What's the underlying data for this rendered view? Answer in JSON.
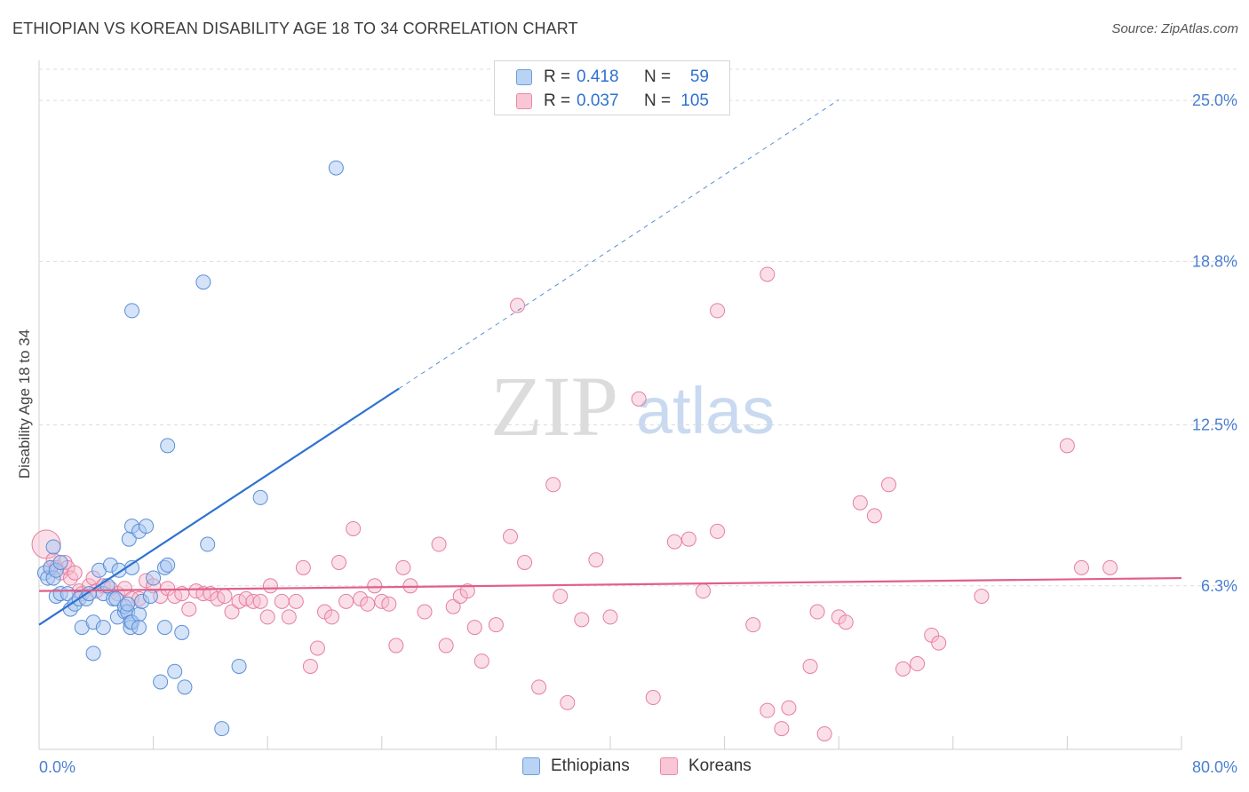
{
  "title": "ETHIOPIAN VS KOREAN DISABILITY AGE 18 TO 34 CORRELATION CHART",
  "source": "Source: ZipAtlas.com",
  "watermark": {
    "zip": "ZIP",
    "atlas": "atlas"
  },
  "legend_top": [
    {
      "r_label": "R =",
      "r_value": "0.418",
      "n_label": "N =",
      "n_value": "59"
    },
    {
      "r_label": "R =",
      "r_value": "0.037",
      "n_label": "N =",
      "n_value": "105"
    }
  ],
  "legend_bottom": [
    {
      "label": "Ethiopians"
    },
    {
      "label": "Koreans"
    }
  ],
  "colors": {
    "eth_fill": "#a9c8f0",
    "eth_stroke": "#5b8ed8",
    "eth_line": "#2f72d0",
    "kor_fill": "#f7b8cc",
    "kor_stroke": "#e47fa0",
    "kor_line": "#e0608a",
    "tick_label": "#4a7fd0",
    "grid": "#dddddd"
  },
  "chart_data": {
    "type": "scatter",
    "title": "ETHIOPIAN VS KOREAN DISABILITY AGE 18 TO 34 CORRELATION CHART",
    "xlabel": "",
    "ylabel": "Disability Age 18 to 34",
    "xlim": [
      0,
      80
    ],
    "ylim": [
      0,
      26.2
    ],
    "x_tick_labels": [
      "0.0%",
      "80.0%"
    ],
    "y_ticks": [
      6.3,
      12.5,
      18.8,
      25.0
    ],
    "y_tick_labels": [
      "6.3%",
      "12.5%",
      "18.8%",
      "25.0%"
    ],
    "grid": true,
    "series": [
      {
        "name": "Ethiopians",
        "r": 0.418,
        "n": 59,
        "trend": {
          "x0": 0,
          "y0": 4.8,
          "x1": 25.2,
          "y1": 13.9,
          "dashed_to_x": 56.0
        },
        "points": [
          [
            0.4,
            6.8
          ],
          [
            0.6,
            6.6
          ],
          [
            0.8,
            7.0
          ],
          [
            1.0,
            6.6
          ],
          [
            1.2,
            6.9
          ],
          [
            1.5,
            7.2
          ],
          [
            1.0,
            7.8
          ],
          [
            1.2,
            5.9
          ],
          [
            1.5,
            6.0
          ],
          [
            2.0,
            6.0
          ],
          [
            2.2,
            5.4
          ],
          [
            2.5,
            5.6
          ],
          [
            2.8,
            5.8
          ],
          [
            3.0,
            4.7
          ],
          [
            3.3,
            5.8
          ],
          [
            3.5,
            6.0
          ],
          [
            3.8,
            4.9
          ],
          [
            3.8,
            3.7
          ],
          [
            4.2,
            6.9
          ],
          [
            4.5,
            6.0
          ],
          [
            4.5,
            4.7
          ],
          [
            4.8,
            6.3
          ],
          [
            5.0,
            7.1
          ],
          [
            5.2,
            5.8
          ],
          [
            5.4,
            5.8
          ],
          [
            5.5,
            5.1
          ],
          [
            5.6,
            6.9
          ],
          [
            6.0,
            5.3
          ],
          [
            6.0,
            5.5
          ],
          [
            6.2,
            5.3
          ],
          [
            6.5,
            7.0
          ],
          [
            6.2,
            5.6
          ],
          [
            6.4,
            4.9
          ],
          [
            6.3,
            8.1
          ],
          [
            6.4,
            4.7
          ],
          [
            6.5,
            4.9
          ],
          [
            7.0,
            5.2
          ],
          [
            6.5,
            16.9
          ],
          [
            6.5,
            8.6
          ],
          [
            7.0,
            8.4
          ],
          [
            7.0,
            4.7
          ],
          [
            7.2,
            5.7
          ],
          [
            7.5,
            8.6
          ],
          [
            7.8,
            5.9
          ],
          [
            8.0,
            6.6
          ],
          [
            8.5,
            2.6
          ],
          [
            8.8,
            4.7
          ],
          [
            8.8,
            7.0
          ],
          [
            9.0,
            7.1
          ],
          [
            9.0,
            11.7
          ],
          [
            9.5,
            3.0
          ],
          [
            10.0,
            4.5
          ],
          [
            10.2,
            2.4
          ],
          [
            11.5,
            18.0
          ],
          [
            11.8,
            7.9
          ],
          [
            12.8,
            0.8
          ],
          [
            14.0,
            3.2
          ],
          [
            15.5,
            9.7
          ],
          [
            20.8,
            22.4
          ]
        ]
      },
      {
        "name": "Koreans",
        "r": 0.037,
        "n": 105,
        "trend": {
          "x0": 0,
          "y0": 6.1,
          "x1": 80,
          "y1": 6.6
        },
        "points": [
          [
            0.5,
            7.9
          ],
          [
            0.8,
            7.0
          ],
          [
            1.0,
            7.3
          ],
          [
            1.2,
            7.0
          ],
          [
            1.5,
            6.8
          ],
          [
            1.8,
            7.2
          ],
          [
            2.0,
            7.0
          ],
          [
            2.2,
            6.6
          ],
          [
            2.5,
            6.8
          ],
          [
            2.8,
            6.1
          ],
          [
            3.0,
            6.0
          ],
          [
            3.5,
            6.3
          ],
          [
            3.8,
            6.6
          ],
          [
            4.0,
            6.1
          ],
          [
            4.5,
            6.3
          ],
          [
            5.0,
            6.2
          ],
          [
            5.5,
            6.0
          ],
          [
            6.0,
            6.2
          ],
          [
            6.5,
            5.8
          ],
          [
            7.0,
            5.8
          ],
          [
            7.5,
            6.5
          ],
          [
            8.0,
            6.3
          ],
          [
            8.5,
            5.9
          ],
          [
            9.0,
            6.2
          ],
          [
            9.5,
            5.9
          ],
          [
            10.0,
            6.0
          ],
          [
            10.5,
            5.4
          ],
          [
            11.0,
            6.1
          ],
          [
            11.5,
            6.0
          ],
          [
            12.0,
            6.0
          ],
          [
            12.5,
            5.8
          ],
          [
            13.0,
            5.9
          ],
          [
            13.5,
            5.3
          ],
          [
            14.0,
            5.7
          ],
          [
            14.5,
            5.8
          ],
          [
            15.0,
            5.7
          ],
          [
            15.5,
            5.7
          ],
          [
            16.0,
            5.1
          ],
          [
            16.2,
            6.3
          ],
          [
            17.0,
            5.7
          ],
          [
            17.5,
            5.1
          ],
          [
            18.0,
            5.7
          ],
          [
            18.5,
            7.0
          ],
          [
            19.0,
            3.2
          ],
          [
            19.5,
            3.9
          ],
          [
            20.0,
            5.3
          ],
          [
            20.5,
            5.1
          ],
          [
            21.0,
            7.2
          ],
          [
            21.5,
            5.7
          ],
          [
            22.0,
            8.5
          ],
          [
            22.5,
            5.8
          ],
          [
            23.0,
            5.6
          ],
          [
            23.5,
            6.3
          ],
          [
            24.0,
            5.7
          ],
          [
            24.5,
            5.6
          ],
          [
            25.0,
            4.0
          ],
          [
            25.5,
            7.0
          ],
          [
            26.0,
            6.3
          ],
          [
            27.0,
            5.3
          ],
          [
            28.0,
            7.9
          ],
          [
            28.5,
            4.0
          ],
          [
            29.0,
            5.5
          ],
          [
            29.5,
            5.9
          ],
          [
            30.0,
            6.1
          ],
          [
            30.5,
            4.7
          ],
          [
            31.0,
            3.4
          ],
          [
            32.0,
            4.8
          ],
          [
            33.0,
            8.2
          ],
          [
            33.5,
            17.1
          ],
          [
            34.0,
            7.2
          ],
          [
            35.0,
            2.4
          ],
          [
            36.0,
            10.2
          ],
          [
            36.5,
            5.9
          ],
          [
            37.0,
            1.8
          ],
          [
            38.0,
            5.0
          ],
          [
            39.0,
            7.3
          ],
          [
            40.0,
            5.1
          ],
          [
            42.0,
            13.5
          ],
          [
            43.0,
            2.0
          ],
          [
            44.5,
            8.0
          ],
          [
            45.5,
            8.1
          ],
          [
            46.5,
            6.1
          ],
          [
            47.5,
            8.4
          ],
          [
            47.5,
            16.9
          ],
          [
            50.0,
            4.8
          ],
          [
            51.0,
            18.3
          ],
          [
            51.0,
            1.5
          ],
          [
            52.0,
            0.8
          ],
          [
            52.5,
            1.6
          ],
          [
            54.0,
            3.2
          ],
          [
            54.5,
            5.3
          ],
          [
            55.0,
            0.6
          ],
          [
            56.0,
            5.1
          ],
          [
            56.5,
            4.9
          ],
          [
            57.5,
            9.5
          ],
          [
            58.5,
            9.0
          ],
          [
            59.5,
            10.2
          ],
          [
            60.5,
            3.1
          ],
          [
            61.5,
            3.3
          ],
          [
            62.5,
            4.4
          ],
          [
            63.0,
            4.1
          ],
          [
            66.0,
            5.9
          ],
          [
            72.0,
            11.7
          ],
          [
            73.0,
            7.0
          ],
          [
            75.0,
            7.0
          ]
        ]
      }
    ]
  }
}
